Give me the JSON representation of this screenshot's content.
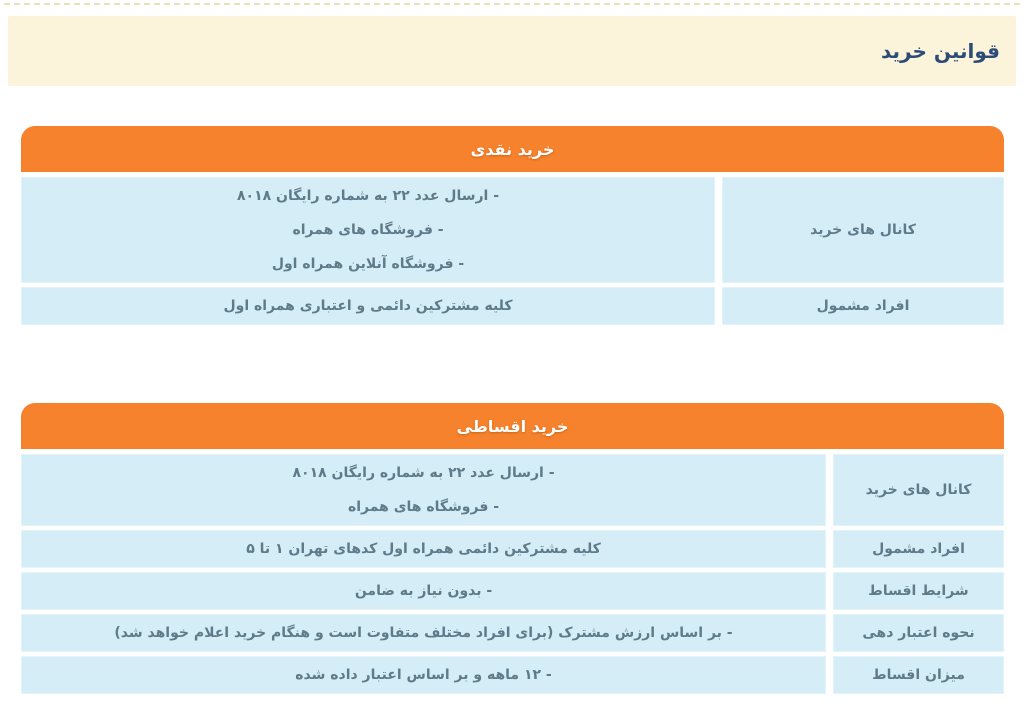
{
  "page": {
    "title": "قوانین خرید"
  },
  "colors": {
    "accent_orange": "#F6822D",
    "cell_blue": "#D5EDF7",
    "banner_cream": "#FCF3DB",
    "title_navy": "#2C4B77",
    "cell_text": "#5E7B8A"
  },
  "tables": [
    {
      "title": "خرید نقدی",
      "rows": [
        {
          "label": "کانال های خرید",
          "lines": [
            "- ارسال عدد ۲۲ به شماره رایگان ۸۰۱۸",
            "- فروشگاه های همراه",
            "- فروشگاه آنلاین همراه اول"
          ]
        },
        {
          "label": "افراد مشمول",
          "lines": [
            "کلیه مشترکین دائمی و اعتباری همراه اول"
          ]
        }
      ]
    },
    {
      "title": "خرید اقساطی",
      "rows": [
        {
          "label": "کانال های خرید",
          "lines": [
            "- ارسال عدد ۲۲ به شماره رایگان ۸۰۱۸",
            "- فروشگاه های همراه"
          ]
        },
        {
          "label": "افراد مشمول",
          "lines": [
            "کلیه مشترکین دائمی همراه اول کدهای تهران ۱ تا ۵"
          ]
        },
        {
          "label": "شرایط اقساط",
          "lines": [
            "- بدون نیاز به ضامن"
          ]
        },
        {
          "label": "نحوه اعتبار دهی",
          "lines": [
            "- بر اساس ارزش مشترک (برای افراد مختلف متفاوت است و هنگام خرید اعلام خواهد شد)"
          ]
        },
        {
          "label": "میزان اقساط",
          "lines": [
            "- ۱۲ ماهه و بر اساس اعتبار داده شده"
          ]
        }
      ]
    }
  ]
}
